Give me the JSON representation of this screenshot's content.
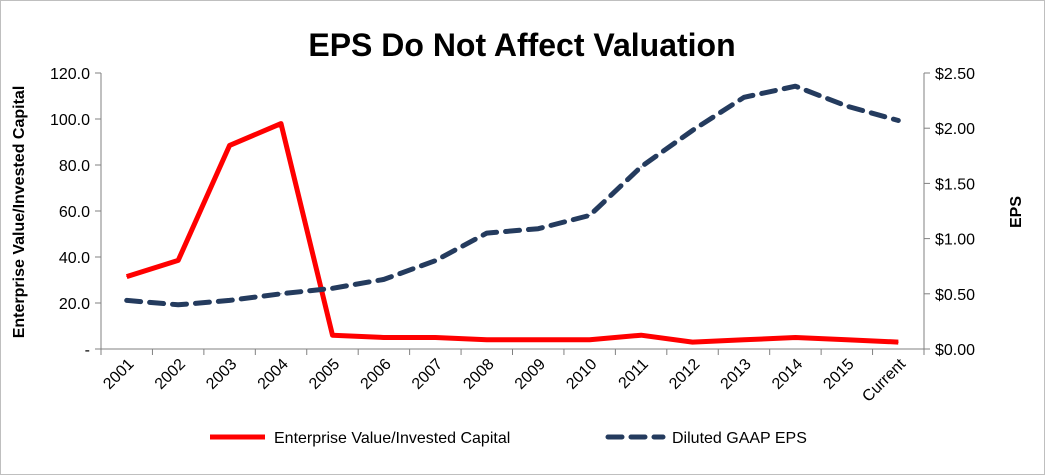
{
  "chart_data": {
    "type": "line",
    "title": "EPS Do Not Affect Valuation",
    "categories": [
      "2001",
      "2002",
      "2003",
      "2004",
      "2005",
      "2006",
      "2007",
      "2008",
      "2009",
      "2010",
      "2011",
      "2012",
      "2013",
      "2014",
      "2015",
      "Current"
    ],
    "series": [
      {
        "name": "Enterprise Value/Invested Capital",
        "axis": "left",
        "color": "#ff0000",
        "style": "solid",
        "values": [
          31.5,
          38.5,
          88.5,
          98.0,
          6.0,
          5.0,
          5.0,
          4.0,
          4.0,
          4.0,
          6.0,
          3.0,
          4.0,
          5.0,
          4.0,
          3.0
        ]
      },
      {
        "name": "Diluted GAAP EPS",
        "axis": "right",
        "color": "#243b5e",
        "style": "dashed",
        "values": [
          0.44,
          0.4,
          0.44,
          0.5,
          0.55,
          0.63,
          0.8,
          1.05,
          1.09,
          1.21,
          1.65,
          1.98,
          2.28,
          2.38,
          2.2,
          2.07
        ]
      }
    ],
    "y_left": {
      "label": "Enterprise Value/Invested Capital",
      "lim": [
        0,
        120
      ],
      "ticks": [
        "-",
        "20.0",
        "40.0",
        "60.0",
        "80.0",
        "100.0",
        "120.0"
      ]
    },
    "y_right": {
      "label": "EPS",
      "lim": [
        0,
        2.5
      ],
      "ticks": [
        "$0.00",
        "$0.50",
        "$1.00",
        "$1.50",
        "$2.00",
        "$2.50"
      ]
    },
    "grid": false,
    "legend": "bottom"
  }
}
